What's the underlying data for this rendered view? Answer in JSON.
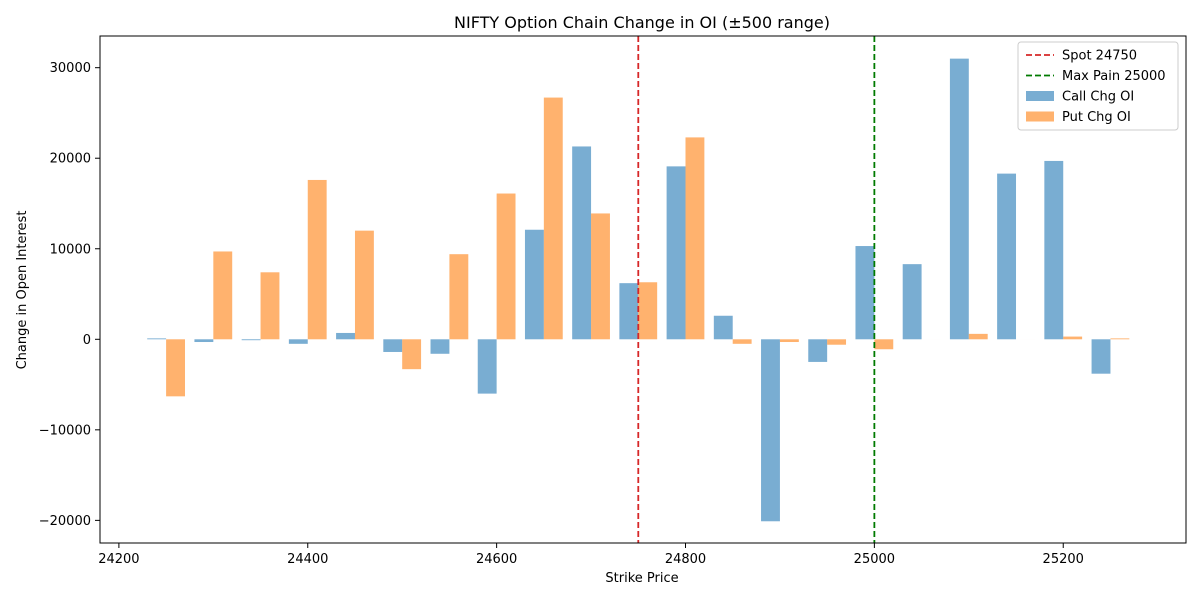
{
  "chart_data": {
    "type": "bar",
    "title": "NIFTY Option Chain Change in OI (±500 range)",
    "xlabel": "Strike Price",
    "ylabel": "Change in Open Interest",
    "xlim": [
      24180,
      25330
    ],
    "ylim": [
      -22500,
      33500
    ],
    "xticks": [
      24200,
      24400,
      24600,
      24800,
      25000,
      25200
    ],
    "yticks": [
      -20000,
      -10000,
      0,
      10000,
      20000,
      30000
    ],
    "strike_step": 50,
    "legend_position": "top-right",
    "grid": false,
    "strikes": [
      24250,
      24300,
      24350,
      24400,
      24450,
      24500,
      24550,
      24600,
      24650,
      24700,
      24750,
      24800,
      24850,
      24900,
      24950,
      25000,
      25050,
      25100,
      25150,
      25200,
      25250
    ],
    "series": [
      {
        "name": "Call Chg OI",
        "color": "#1f77b4",
        "values": [
          100,
          -300,
          -100,
          -500,
          700,
          -1400,
          -1600,
          -6000,
          12100,
          21300,
          6200,
          19100,
          2600,
          -20100,
          -2500,
          10300,
          8300,
          31000,
          18300,
          19700,
          -3800
        ]
      },
      {
        "name": "Put Chg OI",
        "color": "#ff7f0e",
        "values": [
          -6300,
          9700,
          7400,
          17600,
          12000,
          -3300,
          9400,
          16100,
          26700,
          13900,
          6300,
          22300,
          -500,
          -300,
          -600,
          -1100,
          0,
          600,
          0,
          300,
          100
        ]
      }
    ],
    "reference_lines": [
      {
        "name": "Spot 24750",
        "x": 24750,
        "color": "#d62728"
      },
      {
        "name": "Max Pain 25000",
        "x": 25000,
        "color": "#007a00"
      }
    ]
  }
}
